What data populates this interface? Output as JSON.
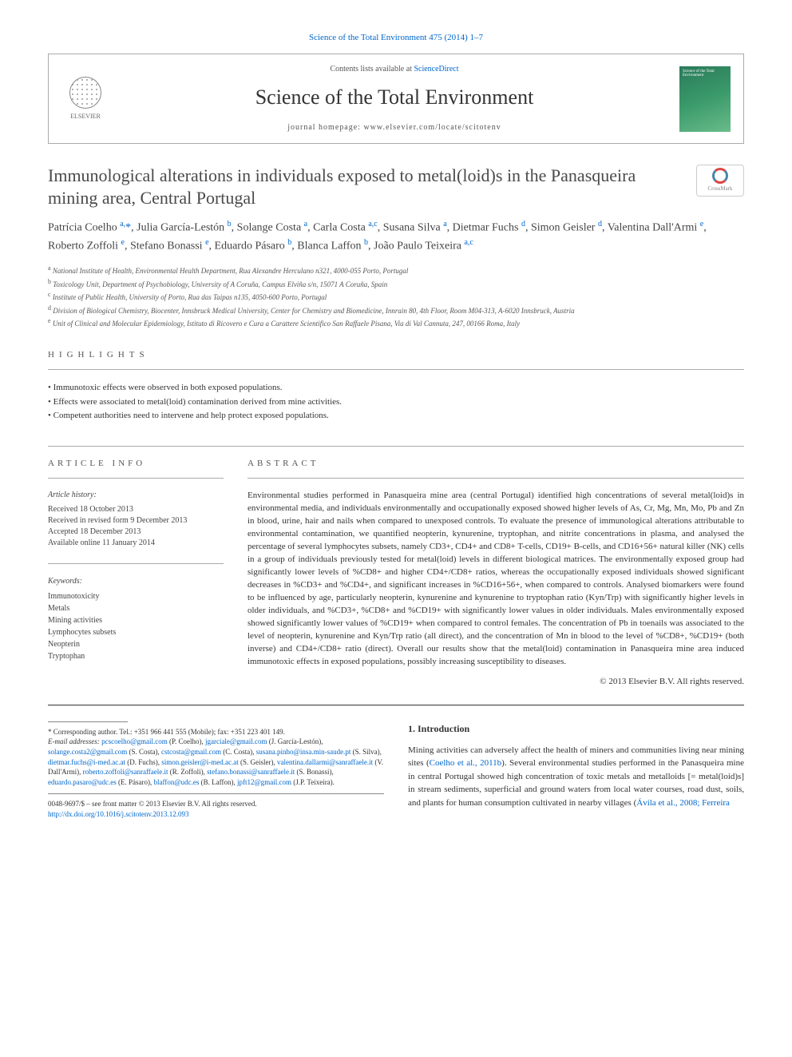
{
  "top_citation": "Science of the Total Environment 475 (2014) 1–7",
  "header": {
    "contents_prefix": "Contents lists available at ",
    "contents_link": "ScienceDirect",
    "journal_name": "Science of the Total Environment",
    "homepage_prefix": "journal homepage: ",
    "homepage": "www.elsevier.com/locate/scitotenv",
    "elsevier_label": "ELSEVIER",
    "cover_text": "Science of the Total Environment"
  },
  "crossmark_label": "CrossMark",
  "article_title": "Immunological alterations in individuals exposed to metal(loid)s in the Panasqueira mining area, Central Portugal",
  "authors_html": "Patrícia Coelho <sup>a,</sup><span class='star'>*</span>, Julia García-Lestón <sup>b</sup>, Solange Costa <sup>a</sup>, Carla Costa <sup>a,c</sup>, Susana Silva <sup>a</sup>, Dietmar Fuchs <sup>d</sup>, Simon Geisler <sup>d</sup>, Valentina Dall'Armi <sup>e</sup>, Roberto Zoffoli <sup>e</sup>, Stefano Bonassi <sup>e</sup>, Eduardo Pásaro <sup>b</sup>, Blanca Laffon <sup>b</sup>, João Paulo Teixeira <sup>a,c</sup>",
  "affiliations": [
    {
      "key": "a",
      "text": "National Institute of Health, Environmental Health Department, Rua Alexandre Herculano n321, 4000-055 Porto, Portugal"
    },
    {
      "key": "b",
      "text": "Toxicology Unit, Department of Psychobiology, University of A Coruña, Campus Elviña s/n, 15071 A Coruña, Spain"
    },
    {
      "key": "c",
      "text": "Institute of Public Health, University of Porto, Rua das Taipas n135, 4050-600 Porto, Portugal"
    },
    {
      "key": "d",
      "text": "Division of Biological Chemistry, Biocenter, Innsbruck Medical University, Center for Chemistry and Biomedicine, Innrain 80, 4th Floor, Room M04-313, A-6020 Innsbruck, Austria"
    },
    {
      "key": "e",
      "text": "Unit of Clinical and Molecular Epidemiology, Istituto di Ricovero e Cura a Carattere Scientifico San Raffaele Pisana, Via di Val Cannuta, 247, 00166 Roma, Italy"
    }
  ],
  "highlights_label": "HIGHLIGHTS",
  "highlights": [
    "Immunotoxic effects were observed in both exposed populations.",
    "Effects were associated to metal(loid) contamination derived from mine activities.",
    "Competent authorities need to intervene and help protect exposed populations."
  ],
  "article_info_label": "ARTICLE INFO",
  "history_label": "Article history:",
  "history": [
    "Received 18 October 2013",
    "Received in revised form 9 December 2013",
    "Accepted 18 December 2013",
    "Available online 11 January 2014"
  ],
  "keywords_label": "Keywords:",
  "keywords": [
    "Immunotoxicity",
    "Metals",
    "Mining activities",
    "Lymphocytes subsets",
    "Neopterin",
    "Tryptophan"
  ],
  "abstract_label": "ABSTRACT",
  "abstract": "Environmental studies performed in Panasqueira mine area (central Portugal) identified high concentrations of several metal(loid)s in environmental media, and individuals environmentally and occupationally exposed showed higher levels of As, Cr, Mg, Mn, Mo, Pb and Zn in blood, urine, hair and nails when compared to unexposed controls. To evaluate the presence of immunological alterations attributable to environmental contamination, we quantified neopterin, kynurenine, tryptophan, and nitrite concentrations in plasma, and analysed the percentage of several lymphocytes subsets, namely CD3+, CD4+ and CD8+ T-cells, CD19+ B-cells, and CD16+56+ natural killer (NK) cells in a group of individuals previously tested for metal(loid) levels in different biological matrices. The environmentally exposed group had significantly lower levels of %CD8+ and higher CD4+/CD8+ ratios, whereas the occupationally exposed individuals showed significant decreases in %CD3+ and %CD4+, and significant increases in %CD16+56+, when compared to controls. Analysed biomarkers were found to be influenced by age, particularly neopterin, kynurenine and kynurenine to tryptophan ratio (Kyn/Trp) with significantly higher levels in older individuals, and %CD3+, %CD8+ and %CD19+ with significantly lower values in older individuals. Males environmentally exposed showed significantly lower values of %CD19+ when compared to control females. The concentration of Pb in toenails was associated to the level of neopterin, kynurenine and Kyn/Trp ratio (all direct), and the concentration of Mn in blood to the level of %CD8+, %CD19+ (both inverse) and CD4+/CD8+ ratio (direct). Overall our results show that the metal(loid) contamination in Panasqueira mine area induced immunotoxic effects in exposed populations, possibly increasing susceptibility to diseases.",
  "copyright": "© 2013 Elsevier B.V. All rights reserved.",
  "corresponding_prefix": "* Corresponding author. Tel.: +351 966 441 555 (Mobile); fax: +351 223 401 149.",
  "email_label": "E-mail addresses:",
  "emails": [
    {
      "addr": "pcscoelho@gmail.com",
      "who": "(P. Coelho),"
    },
    {
      "addr": "jgarciale@gmail.com",
      "who": "(J. García-Lestón),"
    },
    {
      "addr": "solange.costa2@gmail.com",
      "who": "(S. Costa),"
    },
    {
      "addr": "cstcosta@gmail.com",
      "who": "(C. Costa),"
    },
    {
      "addr": "susana.pinho@insa.min-saude.pt",
      "who": "(S. Silva),"
    },
    {
      "addr": "dietmar.fuchs@i-med.ac.at",
      "who": "(D. Fuchs),"
    },
    {
      "addr": "simon.geisler@i-med.ac.at",
      "who": "(S. Geisler),"
    },
    {
      "addr": "valentina.dallarmi@sanraffaele.it",
      "who": "(V. Dall'Armi),"
    },
    {
      "addr": "roberto.zoffoli@sanraffaele.it",
      "who": "(R. Zoffoli),"
    },
    {
      "addr": "stefano.bonassi@sanraffaele.it",
      "who": "(S. Bonassi),"
    },
    {
      "addr": "eduardo.pasaro@udc.es",
      "who": "(E. Pásaro),"
    },
    {
      "addr": "blaffon@udc.es",
      "who": "(B. Laffon),"
    },
    {
      "addr": "jpft12@gmail.com",
      "who": "(J.P. Teixeira)."
    }
  ],
  "footer_issn": "0048-9697/$ – see front matter © 2013 Elsevier B.V. All rights reserved.",
  "footer_doi": "http://dx.doi.org/10.1016/j.scitotenv.2013.12.093",
  "intro_heading": "1. Introduction",
  "intro_text": "Mining activities can adversely affect the health of miners and communities living near mining sites (Coelho et al., 2011b). Several environmental studies performed in the Panasqueira mine in central Portugal showed high concentration of toxic metals and metalloids [= metal(loid)s] in stream sediments, superficial and ground waters from local water courses, road dust, soils, and plants for human consumption cultivated in nearby villages (Ávila et al., 2008; Ferreira",
  "intro_links": {
    "coelho": "Coelho et al., 2011b",
    "avila": "Ávila et al., 2008; Ferreira"
  },
  "colors": {
    "link": "#0066cc",
    "text": "#333333",
    "border": "#aaaaaa",
    "cover_bg": "#3a9a6a"
  }
}
